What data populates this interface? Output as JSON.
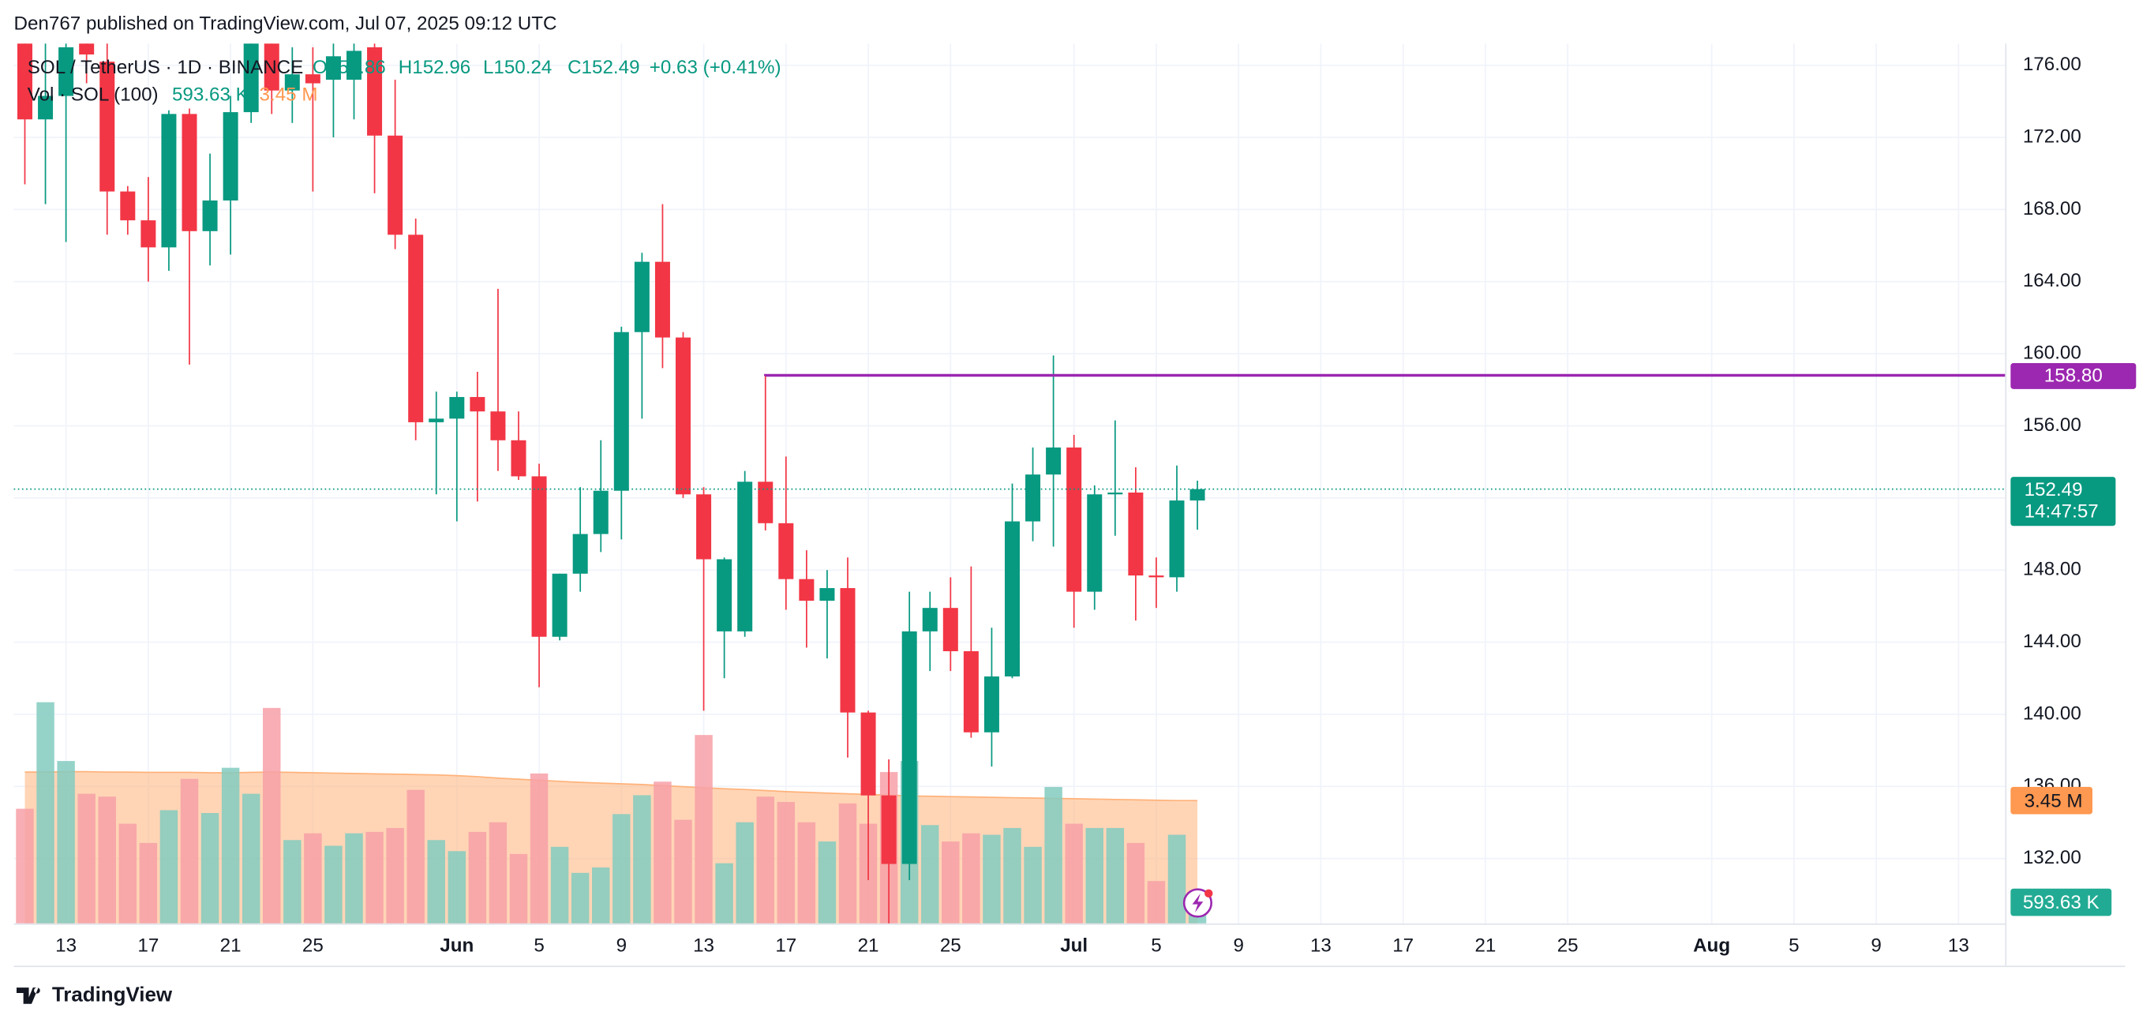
{
  "chart_data": {
    "type": "candlestick",
    "published": "Den767 published on TradingView.com, Jul 07, 2025 09:12 UTC",
    "legend": {
      "symbol": "SOL / TetherUS · 1D · BINANCE",
      "open": "O151.86",
      "high": "H152.96",
      "low": "L150.24",
      "close": "C152.49",
      "change": "+0.63 (+0.41%)",
      "volume_name": "Vol · SOL (100)"
    },
    "brand": "TradingView",
    "x": [
      "2025-05-11",
      "2025-05-12",
      "2025-05-13",
      "2025-05-14",
      "2025-05-15",
      "2025-05-16",
      "2025-05-17",
      "2025-05-18",
      "2025-05-19",
      "2025-05-20",
      "2025-05-21",
      "2025-05-22",
      "2025-05-23",
      "2025-05-24",
      "2025-05-25",
      "2025-05-26",
      "2025-05-27",
      "2025-05-28",
      "2025-05-29",
      "2025-05-30",
      "2025-05-31",
      "2025-06-01",
      "2025-06-02",
      "2025-06-03",
      "2025-06-04",
      "2025-06-05",
      "2025-06-06",
      "2025-06-07",
      "2025-06-08",
      "2025-06-09",
      "2025-06-10",
      "2025-06-11",
      "2025-06-12",
      "2025-06-13",
      "2025-06-14",
      "2025-06-15",
      "2025-06-16",
      "2025-06-17",
      "2025-06-18",
      "2025-06-19",
      "2025-06-20",
      "2025-06-21",
      "2025-06-22",
      "2025-06-23",
      "2025-06-24",
      "2025-06-25",
      "2025-06-26",
      "2025-06-27",
      "2025-06-28",
      "2025-06-29",
      "2025-06-30",
      "2025-07-01",
      "2025-07-02",
      "2025-07-03",
      "2025-07-04",
      "2025-07-05",
      "2025-07-06",
      "2025-07-07"
    ],
    "open": [
      177.5,
      173.0,
      174.3,
      177.5,
      176.2,
      169.0,
      167.4,
      165.9,
      173.3,
      166.8,
      168.5,
      173.4,
      177.5,
      174.6,
      175.5,
      175.2,
      175.2,
      177.0,
      172.1,
      166.6,
      156.2,
      156.4,
      157.6,
      156.8,
      155.2,
      153.2,
      144.3,
      147.8,
      150.0,
      152.4,
      161.2,
      165.1,
      160.9,
      152.2,
      144.6,
      144.6,
      152.9,
      150.6,
      147.5,
      146.3,
      147.0,
      140.1,
      135.5,
      131.7,
      144.6,
      145.9,
      143.5,
      139.0,
      142.1,
      150.7,
      153.3,
      154.8,
      146.8,
      152.2,
      152.3,
      147.7,
      147.6,
      151.86
    ],
    "high": [
      178,
      178,
      178,
      178,
      178,
      169.3,
      169.8,
      173.5,
      173.6,
      171.1,
      174.3,
      178,
      178,
      177,
      177,
      178,
      178,
      178,
      175.2,
      167.5,
      157.9,
      157.9,
      159.0,
      163.6,
      156.8,
      153.9,
      147.8,
      152.6,
      155.2,
      161.5,
      165.6,
      168.3,
      161.2,
      152.6,
      148.7,
      153.5,
      158.8,
      154.3,
      149.1,
      148.0,
      148.7,
      140.2,
      137.5,
      146.8,
      146.8,
      147.6,
      148.2,
      144.8,
      152.8,
      154.8,
      159.9,
      155.5,
      152.7,
      156.3,
      153.7,
      148.7,
      153.8,
      152.96
    ],
    "low": [
      169.4,
      168.3,
      166.2,
      175.0,
      166.6,
      166.6,
      164.0,
      164.6,
      159.4,
      164.9,
      165.5,
      172.8,
      173.3,
      172.8,
      169.0,
      172.0,
      173.0,
      168.9,
      165.8,
      155.2,
      152.2,
      150.7,
      151.8,
      153.5,
      153.0,
      141.5,
      144.1,
      146.8,
      149.0,
      149.7,
      156.4,
      159.2,
      152.0,
      140.2,
      142.0,
      144.3,
      150.2,
      145.8,
      143.7,
      143.1,
      137.6,
      130.8,
      128.4,
      130.8,
      142.4,
      142.4,
      138.7,
      137.1,
      142.0,
      149.6,
      149.3,
      144.8,
      145.8,
      149.9,
      145.2,
      145.9,
      146.8,
      150.24
    ],
    "close": [
      173.0,
      174.3,
      177.0,
      176.6,
      169.0,
      167.4,
      165.9,
      173.3,
      166.8,
      168.5,
      173.4,
      177.5,
      174.6,
      175.5,
      175.0,
      176.5,
      176.8,
      172.1,
      166.6,
      156.2,
      156.4,
      157.6,
      156.8,
      155.2,
      153.2,
      144.3,
      147.8,
      150.0,
      152.4,
      161.2,
      165.1,
      160.9,
      152.2,
      148.6,
      148.6,
      152.9,
      150.6,
      147.5,
      146.3,
      147.0,
      140.1,
      135.5,
      131.7,
      144.6,
      145.9,
      143.5,
      139.0,
      142.1,
      150.7,
      153.3,
      154.8,
      146.8,
      152.2,
      152.3,
      147.7,
      147.6,
      151.86,
      152.49
    ],
    "volume": [
      3.22,
      6.21,
      4.56,
      3.64,
      3.56,
      2.8,
      2.26,
      3.18,
      4.06,
      3.1,
      4.37,
      3.64,
      6.05,
      2.34,
      2.53,
      2.18,
      2.53,
      2.57,
      2.68,
      3.75,
      2.34,
      2.03,
      2.57,
      2.84,
      1.95,
      4.21,
      2.15,
      1.42,
      1.57,
      3.07,
      3.6,
      3.98,
      2.91,
      5.29,
      1.69,
      2.84,
      3.56,
      3.41,
      2.84,
      2.3,
      3.37,
      2.8,
      4.25,
      4.56,
      2.76,
      2.3,
      2.53,
      2.49,
      2.68,
      2.15,
      3.83,
      2.8,
      2.68,
      2.68,
      2.26,
      1.19,
      2.49,
      0.59363
    ],
    "volume_ma": [
      4.25,
      4.25,
      4.26,
      4.26,
      4.25,
      4.25,
      4.24,
      4.24,
      4.24,
      4.23,
      4.23,
      4.24,
      4.25,
      4.24,
      4.23,
      4.22,
      4.21,
      4.2,
      4.19,
      4.18,
      4.17,
      4.15,
      4.12,
      4.08,
      4.05,
      4.02,
      3.99,
      3.96,
      3.94,
      3.92,
      3.9,
      3.87,
      3.84,
      3.81,
      3.78,
      3.76,
      3.73,
      3.7,
      3.68,
      3.66,
      3.64,
      3.62,
      3.6,
      3.58,
      3.57,
      3.56,
      3.55,
      3.54,
      3.53,
      3.52,
      3.51,
      3.5,
      3.49,
      3.48,
      3.47,
      3.46,
      3.45,
      3.45
    ],
    "volume_label": "593.63 K",
    "volume_ma_label": "3.45 M",
    "countdown": "14:47:57",
    "up_color": "#089981",
    "down_color": "#f23645",
    "volume_up_color": "#82cbc0",
    "volume_down_color": "#f7a0a7",
    "volume_ma_color": "#ffb27a",
    "vol_ylim": [
      0,
      24.7
    ],
    "hline": {
      "value": 158.8,
      "label": "158.80",
      "start": "2025-06-16",
      "color": "#9c27b0"
    },
    "xlim": [
      "2025-05-10",
      "2025-08-15"
    ],
    "ylim": [
      128.4,
      177.2
    ],
    "yticks": [
      {
        "value": 132,
        "label": "132.00"
      },
      {
        "value": 136,
        "label": "136.00"
      },
      {
        "value": 140,
        "label": "140.00"
      },
      {
        "value": 144,
        "label": "144.00"
      },
      {
        "value": 148,
        "label": "148.00"
      },
      {
        "value": 152,
        "label": "152.00"
      },
      {
        "value": 156,
        "label": "156.00"
      },
      {
        "value": 160,
        "label": "160.00"
      },
      {
        "value": 164,
        "label": "164.00"
      },
      {
        "value": 168,
        "label": "168.00"
      },
      {
        "value": 172,
        "label": "172.00"
      },
      {
        "value": 176,
        "label": "176.00"
      }
    ],
    "xticks": [
      {
        "value": "2025-05-13",
        "label": "13"
      },
      {
        "value": "2025-05-17",
        "label": "17"
      },
      {
        "value": "2025-05-21",
        "label": "21"
      },
      {
        "value": "2025-05-25",
        "label": "25"
      },
      {
        "value": "2025-06-01",
        "label": "Jun"
      },
      {
        "value": "2025-06-05",
        "label": "5"
      },
      {
        "value": "2025-06-09",
        "label": "9"
      },
      {
        "value": "2025-06-13",
        "label": "13"
      },
      {
        "value": "2025-06-17",
        "label": "17"
      },
      {
        "value": "2025-06-21",
        "label": "21"
      },
      {
        "value": "2025-06-25",
        "label": "25"
      },
      {
        "value": "2025-07-01",
        "label": "Jul"
      },
      {
        "value": "2025-07-05",
        "label": "5"
      },
      {
        "value": "2025-07-09",
        "label": "9"
      },
      {
        "value": "2025-07-13",
        "label": "13"
      },
      {
        "value": "2025-07-17",
        "label": "17"
      },
      {
        "value": "2025-07-21",
        "label": "21"
      },
      {
        "value": "2025-07-25",
        "label": "25"
      },
      {
        "value": "2025-08-01",
        "label": "Aug"
      },
      {
        "value": "2025-08-05",
        "label": "5"
      },
      {
        "value": "2025-08-09",
        "label": "9"
      },
      {
        "value": "2025-08-13",
        "label": "13"
      }
    ],
    "grid": true
  }
}
